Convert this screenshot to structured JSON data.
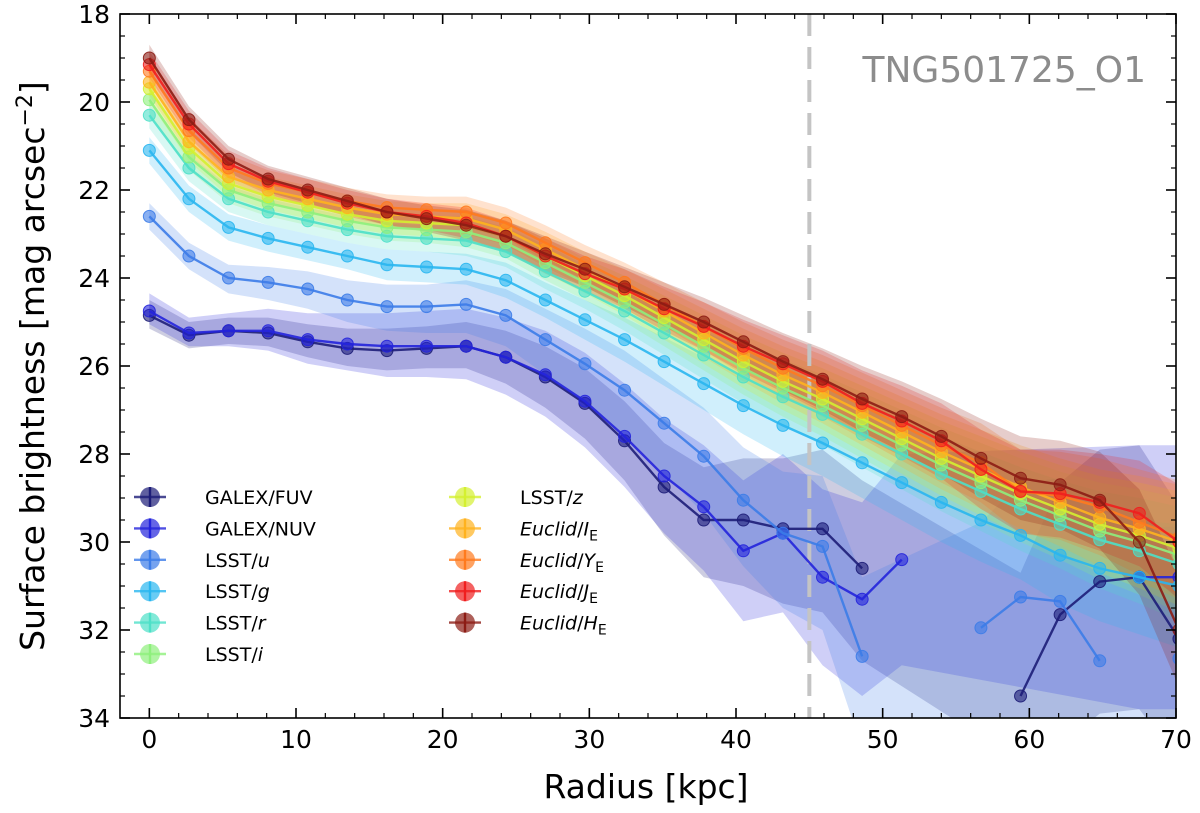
{
  "chart_data": {
    "type": "line",
    "title": "",
    "annotation": "TNG501725_O1",
    "xlabel": "Radius [kpc]",
    "ylabel": "Surface brightness [mag arcsec⁻²]",
    "xlim": [
      -2,
      70
    ],
    "ylim": [
      34,
      18
    ],
    "xticks": [
      0,
      10,
      20,
      30,
      40,
      50,
      60,
      70
    ],
    "yticks": [
      18,
      20,
      22,
      24,
      26,
      28,
      30,
      32,
      34
    ],
    "vline_x": 45,
    "x": [
      0,
      2.7,
      5.4,
      8.1,
      10.8,
      13.5,
      16.2,
      18.9,
      21.6,
      24.3,
      27.0,
      29.7,
      32.4,
      35.1,
      37.8,
      40.5,
      43.2,
      45.9,
      48.6,
      51.3,
      54.0,
      56.7,
      59.4,
      62.1,
      64.8,
      67.5,
      70.2
    ],
    "series": [
      {
        "name": "GALEX/FUV",
        "label_main": "GALEX/",
        "label_ital": "FUV",
        "label_sub": "",
        "italic_part": false,
        "color": "#1d1d78",
        "values": [
          24.85,
          25.3,
          25.2,
          25.25,
          25.45,
          25.6,
          25.65,
          25.6,
          25.55,
          25.8,
          26.25,
          26.85,
          27.7,
          28.75,
          29.5,
          29.5,
          29.7,
          29.7,
          30.6,
          null,
          null,
          null,
          33.5,
          31.65,
          30.9,
          30.8,
          32.2
        ],
        "band_hi": [
          0.35,
          0.3,
          0.3,
          0.35,
          0.4,
          0.45,
          0.5,
          0.5,
          0.55,
          0.6,
          0.7,
          0.8,
          0.9,
          1.0,
          1.2,
          1.4,
          1.6,
          1.8,
          2.0,
          2.2,
          2.4,
          2.6,
          2.8,
          3.0,
          3.0,
          3.0,
          3.0
        ],
        "band_lo": [
          0.3,
          0.3,
          0.3,
          0.3,
          0.35,
          0.4,
          0.45,
          0.45,
          0.5,
          0.6,
          0.7,
          0.8,
          0.9,
          1.1,
          1.3,
          1.5,
          1.7,
          1.9,
          2.1,
          2.3,
          2.5,
          2.7,
          2.9,
          3.0,
          3.0,
          3.0,
          3.0
        ]
      },
      {
        "name": "GALEX/NUV",
        "label_main": "GALEX/",
        "label_ital": "NUV",
        "label_sub": "",
        "italic_part": false,
        "color": "#2323dc",
        "values": [
          24.75,
          25.25,
          25.2,
          25.2,
          25.4,
          25.5,
          25.55,
          25.55,
          25.55,
          25.8,
          26.2,
          26.8,
          27.6,
          28.5,
          29.2,
          30.2,
          29.8,
          30.8,
          31.3,
          30.4,
          null,
          null,
          null,
          null,
          null,
          30.8,
          30.8
        ],
        "band_hi": [
          0.4,
          0.35,
          0.4,
          0.5,
          0.6,
          0.7,
          0.75,
          0.8,
          0.85,
          0.9,
          1.0,
          1.1,
          1.2,
          1.3,
          1.4,
          1.6,
          1.8,
          2.0,
          2.2,
          2.4,
          2.6,
          2.8,
          3.0,
          3.0,
          3.0,
          3.0,
          3.0
        ],
        "band_lo": [
          0.3,
          0.3,
          0.35,
          0.45,
          0.55,
          0.6,
          0.7,
          0.7,
          0.75,
          0.85,
          0.95,
          1.05,
          1.15,
          1.3,
          1.45,
          1.6,
          1.8,
          2.0,
          2.2,
          2.4,
          2.6,
          2.8,
          3.0,
          3.0,
          3.0,
          3.0,
          3.0
        ]
      },
      {
        "name": "LSST/u",
        "label_main": "LSST/",
        "label_ital": "u",
        "label_sub": "",
        "italic_part": true,
        "color": "#3c7ce8",
        "values": [
          22.6,
          23.5,
          24.0,
          24.1,
          24.25,
          24.5,
          24.65,
          24.65,
          24.6,
          24.85,
          25.4,
          25.95,
          26.55,
          27.3,
          28.05,
          29.05,
          29.8,
          30.1,
          32.6,
          null,
          null,
          31.95,
          31.25,
          31.35,
          32.7,
          null,
          32.65
        ],
        "band_hi": [
          0.3,
          0.3,
          0.3,
          0.35,
          0.4,
          0.45,
          0.5,
          0.5,
          0.55,
          0.6,
          0.7,
          0.8,
          0.9,
          1.0,
          1.1,
          1.2,
          1.4,
          1.6,
          1.8,
          2.0,
          2.2,
          2.4,
          2.6,
          2.8,
          3.0,
          3.0,
          3.0
        ],
        "band_lo": [
          0.3,
          0.3,
          0.35,
          0.4,
          0.45,
          0.5,
          0.55,
          0.6,
          0.65,
          0.7,
          0.8,
          0.9,
          1.0,
          1.15,
          1.3,
          1.5,
          1.7,
          1.9,
          2.1,
          2.3,
          2.5,
          2.7,
          2.9,
          3.0,
          3.0,
          3.0,
          3.0
        ]
      },
      {
        "name": "LSST/g",
        "label_main": "LSST/",
        "label_ital": "g",
        "label_sub": "",
        "italic_part": true,
        "color": "#29b6f0",
        "values": [
          21.1,
          22.2,
          22.85,
          23.1,
          23.3,
          23.5,
          23.7,
          23.75,
          23.8,
          24.05,
          24.5,
          24.95,
          25.4,
          25.9,
          26.4,
          26.9,
          27.35,
          27.75,
          28.2,
          28.65,
          29.1,
          29.5,
          29.85,
          30.3,
          30.6,
          30.8,
          31.0
        ],
        "band_hi": [
          0.3,
          0.3,
          0.3,
          0.3,
          0.3,
          0.3,
          0.35,
          0.35,
          0.35,
          0.4,
          0.4,
          0.45,
          0.5,
          0.55,
          0.6,
          0.65,
          0.7,
          0.75,
          0.8,
          0.85,
          0.9,
          0.95,
          1.0,
          1.1,
          1.2,
          1.3,
          1.4
        ],
        "band_lo": [
          0.3,
          0.3,
          0.3,
          0.3,
          0.3,
          0.3,
          0.35,
          0.35,
          0.35,
          0.4,
          0.4,
          0.45,
          0.5,
          0.55,
          0.6,
          0.65,
          0.7,
          0.75,
          0.8,
          0.85,
          0.9,
          0.95,
          1.0,
          1.1,
          1.2,
          1.3,
          1.4
        ]
      },
      {
        "name": "LSST/r",
        "label_main": "LSST/",
        "label_ital": "r",
        "label_sub": "",
        "italic_part": true,
        "color": "#4de0c8",
        "values": [
          20.3,
          21.5,
          22.2,
          22.5,
          22.7,
          22.9,
          23.05,
          23.1,
          23.15,
          23.4,
          23.85,
          24.3,
          24.75,
          25.25,
          25.75,
          26.25,
          26.7,
          27.1,
          27.55,
          28.0,
          28.45,
          28.85,
          29.25,
          29.6,
          29.95,
          30.2,
          30.5
        ],
        "band_hi": [
          0.3,
          0.3,
          0.3,
          0.3,
          0.3,
          0.3,
          0.3,
          0.3,
          0.35,
          0.35,
          0.4,
          0.4,
          0.45,
          0.5,
          0.55,
          0.6,
          0.65,
          0.7,
          0.75,
          0.8,
          0.85,
          0.9,
          0.95,
          1.0,
          1.1,
          1.2,
          1.3
        ],
        "band_lo": [
          0.3,
          0.3,
          0.3,
          0.3,
          0.3,
          0.3,
          0.3,
          0.3,
          0.35,
          0.35,
          0.4,
          0.4,
          0.45,
          0.5,
          0.55,
          0.6,
          0.65,
          0.7,
          0.75,
          0.8,
          0.85,
          0.9,
          0.95,
          1.0,
          1.1,
          1.2,
          1.3
        ]
      },
      {
        "name": "LSST/i",
        "label_main": "LSST/",
        "label_ital": "i",
        "label_sub": "",
        "italic_part": true,
        "color": "#8ef07c",
        "values": [
          19.95,
          21.25,
          22.0,
          22.3,
          22.5,
          22.7,
          22.85,
          22.9,
          22.95,
          23.2,
          23.65,
          24.1,
          24.55,
          25.05,
          25.55,
          26.05,
          26.5,
          26.9,
          27.35,
          27.8,
          28.25,
          28.65,
          29.05,
          29.4,
          29.75,
          30.0,
          30.3
        ],
        "band_hi": [
          0.3,
          0.3,
          0.3,
          0.3,
          0.3,
          0.3,
          0.3,
          0.3,
          0.35,
          0.35,
          0.4,
          0.4,
          0.45,
          0.5,
          0.55,
          0.6,
          0.65,
          0.7,
          0.75,
          0.8,
          0.85,
          0.9,
          0.95,
          1.0,
          1.1,
          1.2,
          1.3
        ],
        "band_lo": [
          0.3,
          0.3,
          0.3,
          0.3,
          0.3,
          0.3,
          0.3,
          0.3,
          0.35,
          0.35,
          0.4,
          0.4,
          0.45,
          0.5,
          0.55,
          0.6,
          0.65,
          0.7,
          0.75,
          0.8,
          0.85,
          0.9,
          0.95,
          1.0,
          1.1,
          1.2,
          1.3
        ]
      },
      {
        "name": "LSST/z",
        "label_main": "LSST/",
        "label_ital": "z",
        "label_sub": "",
        "italic_part": true,
        "color": "#d4f030",
        "values": [
          19.7,
          21.05,
          21.85,
          22.15,
          22.35,
          22.55,
          22.7,
          22.75,
          22.8,
          23.05,
          23.5,
          23.95,
          24.4,
          24.9,
          25.4,
          25.9,
          26.35,
          26.75,
          27.2,
          27.65,
          28.1,
          28.5,
          28.9,
          29.25,
          29.6,
          29.85,
          30.15
        ],
        "band_hi": [
          0.3,
          0.3,
          0.3,
          0.3,
          0.3,
          0.3,
          0.3,
          0.3,
          0.35,
          0.35,
          0.4,
          0.4,
          0.45,
          0.5,
          0.55,
          0.6,
          0.65,
          0.7,
          0.75,
          0.8,
          0.85,
          0.9,
          0.95,
          1.0,
          1.1,
          1.2,
          1.3
        ],
        "band_lo": [
          0.3,
          0.3,
          0.3,
          0.3,
          0.3,
          0.3,
          0.3,
          0.3,
          0.35,
          0.35,
          0.4,
          0.4,
          0.45,
          0.5,
          0.55,
          0.6,
          0.65,
          0.7,
          0.75,
          0.8,
          0.85,
          0.9,
          0.95,
          1.0,
          1.1,
          1.2,
          1.3
        ]
      },
      {
        "name": "Euclid/IE",
        "label_main": "/",
        "label_ital": "Euclid",
        "label_sub": "E",
        "label_band": "I",
        "italic_part": "euclid",
        "color": "#ffb21e",
        "values": [
          19.55,
          20.9,
          21.7,
          22.0,
          22.2,
          22.4,
          22.55,
          22.6,
          22.65,
          22.9,
          23.35,
          23.8,
          24.25,
          24.75,
          25.25,
          25.75,
          26.2,
          26.6,
          27.05,
          27.5,
          27.95,
          28.35,
          28.75,
          29.1,
          29.45,
          29.7,
          30.0
        ],
        "band_hi": [
          0.3,
          0.3,
          0.3,
          0.3,
          0.3,
          0.3,
          0.3,
          0.3,
          0.35,
          0.35,
          0.4,
          0.4,
          0.45,
          0.5,
          0.55,
          0.6,
          0.65,
          0.7,
          0.75,
          0.8,
          0.85,
          0.9,
          0.95,
          1.0,
          1.1,
          1.2,
          1.3
        ],
        "band_lo": [
          0.3,
          0.3,
          0.3,
          0.3,
          0.3,
          0.3,
          0.3,
          0.3,
          0.35,
          0.35,
          0.4,
          0.4,
          0.45,
          0.5,
          0.55,
          0.6,
          0.65,
          0.7,
          0.75,
          0.8,
          0.85,
          0.9,
          0.95,
          1.0,
          1.1,
          1.2,
          1.3
        ]
      },
      {
        "name": "Euclid/YE",
        "label_main": "/",
        "label_ital": "Euclid",
        "label_sub": "E",
        "label_band": "Y",
        "italic_part": "euclid",
        "color": "#ff7a1e",
        "values": [
          19.3,
          20.65,
          21.5,
          21.85,
          22.05,
          22.25,
          22.4,
          22.45,
          22.5,
          22.75,
          23.2,
          23.65,
          24.1,
          24.6,
          25.1,
          25.6,
          26.05,
          26.45,
          26.9,
          27.35,
          27.8,
          28.2,
          28.85,
          28.95,
          29.2,
          29.55,
          29.9
        ],
        "band_hi": [
          0.3,
          0.3,
          0.3,
          0.3,
          0.3,
          0.3,
          0.3,
          0.3,
          0.35,
          0.35,
          0.4,
          0.4,
          0.45,
          0.5,
          0.55,
          0.6,
          0.65,
          0.7,
          0.75,
          0.8,
          0.85,
          0.9,
          0.95,
          1.0,
          1.1,
          1.2,
          1.3
        ],
        "band_lo": [
          0.3,
          0.3,
          0.3,
          0.3,
          0.3,
          0.3,
          0.3,
          0.3,
          0.35,
          0.35,
          0.4,
          0.4,
          0.45,
          0.5,
          0.55,
          0.6,
          0.65,
          0.7,
          0.75,
          0.8,
          0.85,
          0.9,
          0.95,
          1.0,
          1.1,
          1.2,
          1.3
        ]
      },
      {
        "name": "Euclid/JE",
        "label_main": "/",
        "label_ital": "Euclid",
        "label_sub": "E",
        "label_band": "J",
        "italic_part": "euclid",
        "color": "#f01e1e",
        "values": [
          19.15,
          20.5,
          21.4,
          21.8,
          22.05,
          22.3,
          22.5,
          22.6,
          22.75,
          23.05,
          23.5,
          23.9,
          24.25,
          24.7,
          25.1,
          25.55,
          25.95,
          26.35,
          26.85,
          27.25,
          27.7,
          28.35,
          28.85,
          28.9,
          29.1,
          29.35,
          30.0
        ],
        "band_hi": [
          0.3,
          0.3,
          0.3,
          0.3,
          0.3,
          0.3,
          0.3,
          0.3,
          0.35,
          0.35,
          0.4,
          0.4,
          0.45,
          0.5,
          0.55,
          0.6,
          0.65,
          0.7,
          0.75,
          0.8,
          0.85,
          0.9,
          0.95,
          1.0,
          1.1,
          1.2,
          1.3
        ],
        "band_lo": [
          0.3,
          0.3,
          0.3,
          0.3,
          0.3,
          0.3,
          0.3,
          0.3,
          0.35,
          0.35,
          0.4,
          0.4,
          0.45,
          0.5,
          0.55,
          0.6,
          0.65,
          0.7,
          0.75,
          0.8,
          0.85,
          0.9,
          0.95,
          1.0,
          1.1,
          1.2,
          1.3
        ]
      },
      {
        "name": "Euclid/HE",
        "label_main": "/",
        "label_ital": "Euclid",
        "label_sub": "E",
        "label_band": "H",
        "italic_part": "euclid",
        "color": "#8c1c14",
        "values": [
          19.0,
          20.4,
          21.3,
          21.75,
          22.0,
          22.25,
          22.5,
          22.65,
          22.8,
          23.05,
          23.45,
          23.8,
          24.2,
          24.6,
          25.0,
          25.45,
          25.9,
          26.3,
          26.75,
          27.15,
          27.6,
          28.1,
          28.55,
          28.7,
          29.05,
          30.0,
          32.0
        ],
        "band_hi": [
          0.3,
          0.3,
          0.3,
          0.3,
          0.3,
          0.3,
          0.3,
          0.3,
          0.35,
          0.35,
          0.4,
          0.4,
          0.45,
          0.5,
          0.55,
          0.6,
          0.65,
          0.7,
          0.75,
          0.8,
          0.85,
          0.9,
          0.95,
          1.0,
          1.1,
          1.2,
          1.3
        ],
        "band_lo": [
          0.3,
          0.3,
          0.3,
          0.3,
          0.3,
          0.3,
          0.3,
          0.3,
          0.35,
          0.35,
          0.4,
          0.4,
          0.45,
          0.5,
          0.55,
          0.6,
          0.65,
          0.7,
          0.75,
          0.8,
          0.85,
          0.9,
          0.95,
          1.0,
          1.1,
          1.2,
          1.3
        ]
      }
    ],
    "legend": {
      "placement": "lower-left",
      "columns": 2
    }
  }
}
